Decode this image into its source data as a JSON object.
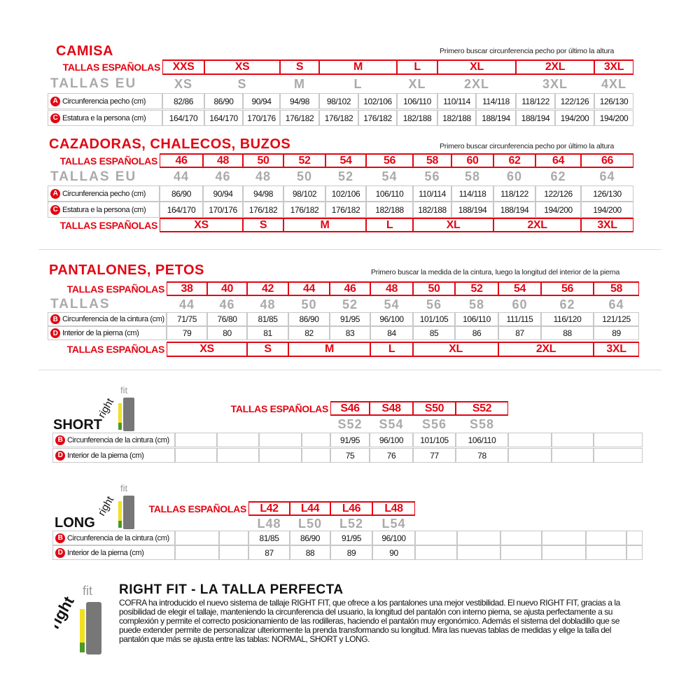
{
  "camisa": {
    "title": "CAMISA",
    "hint": "Primero buscar circunferencia pecho por último la altura",
    "es_label": "TALLAS ESPAÑOLAS",
    "eu_label": "TALLAS EU",
    "es": [
      "XXS",
      "XS",
      "S",
      "M",
      "L",
      "XL",
      "2XL",
      "3XL"
    ],
    "eu": [
      "XS",
      "S",
      "M",
      "L",
      "XL",
      "2XL",
      "3XL",
      "4XL"
    ],
    "rows": [
      {
        "badge": "A",
        "label": "Circunferencia pecho (cm)",
        "values": [
          "82/86",
          "86/90",
          "90/94",
          "94/98",
          "98/102",
          "102/106",
          "106/110",
          "110/114",
          "114/118",
          "118/122",
          "122/126",
          "126/130"
        ]
      },
      {
        "badge": "C",
        "label": "Estatura e la persona (cm)",
        "values": [
          "164/170",
          "164/170",
          "170/176",
          "176/182",
          "176/182",
          "176/182",
          "182/188",
          "182/188",
          "188/194",
          "188/194",
          "194/200",
          "194/200"
        ]
      }
    ]
  },
  "cazadoras": {
    "title": "CAZADORAS, CHALECOS, BUZOS",
    "hint": "Primero buscar circunferencia pecho por último la altura",
    "es_label": "TALLAS ESPAÑOLAS",
    "eu_label": "TALLAS EU",
    "es": [
      "46",
      "48",
      "50",
      "52",
      "54",
      "56",
      "58",
      "60",
      "62",
      "64",
      "66"
    ],
    "eu": [
      "44",
      "46",
      "48",
      "50",
      "52",
      "54",
      "56",
      "58",
      "60",
      "62",
      "64"
    ],
    "rows": [
      {
        "badge": "A",
        "label": "Circunferencia pecho (cm)",
        "values": [
          "86/90",
          "90/94",
          "94/98",
          "98/102",
          "102/106",
          "106/110",
          "110/114",
          "114/118",
          "118/122",
          "122/126",
          "126/130"
        ]
      },
      {
        "badge": "C",
        "label": "Estatura e la persona (cm)",
        "values": [
          "164/170",
          "170/176",
          "176/182",
          "176/182",
          "176/182",
          "182/188",
          "182/188",
          "188/194",
          "188/194",
          "194/200",
          "194/200"
        ]
      }
    ],
    "bottom_label": "TALLAS ESPAÑOLAS",
    "bottom": [
      "XS",
      "S",
      "M",
      "L",
      "XL",
      "2XL",
      "3XL"
    ]
  },
  "pantalones": {
    "title": "PANTALONES, PETOS",
    "hint": "Primero buscar la medida de la cintura, luego la longitud del interior de la pierna",
    "es_label": "TALLAS ESPAÑOLAS",
    "eu_label": "TALLAS",
    "es": [
      "38",
      "40",
      "42",
      "44",
      "46",
      "48",
      "50",
      "52",
      "54",
      "56",
      "58"
    ],
    "eu": [
      "44",
      "46",
      "48",
      "50",
      "52",
      "54",
      "56",
      "58",
      "60",
      "62",
      "64"
    ],
    "rows": [
      {
        "badge": "B",
        "label": "Circunferencia de la cintura (cm)",
        "values": [
          "71/75",
          "76/80",
          "81/85",
          "86/90",
          "91/95",
          "96/100",
          "101/105",
          "106/110",
          "111/115",
          "116/120",
          "121/125"
        ]
      },
      {
        "badge": "D",
        "label": "Interior de la pierna (cm)",
        "values": [
          "79",
          "80",
          "81",
          "82",
          "83",
          "84",
          "85",
          "86",
          "87",
          "88",
          "89"
        ]
      }
    ],
    "bottom_label": "TALLAS ESPAÑOLAS",
    "bottom": [
      "XS",
      "S",
      "M",
      "L",
      "XL",
      "2XL",
      "3XL"
    ]
  },
  "short": {
    "title": "SHORT",
    "logo": "rightfit",
    "es_label": "TALLAS ESPAÑOLAS",
    "es": [
      "S46",
      "S48",
      "S50",
      "S52"
    ],
    "eu": [
      "S52",
      "S54",
      "S56",
      "S58"
    ],
    "rows": [
      {
        "badge": "B",
        "label": "Circunferencia de la cintura (cm)",
        "values": [
          "",
          "",
          "",
          "",
          "91/95",
          "96/100",
          "101/105",
          "106/110",
          "",
          "",
          ""
        ]
      },
      {
        "badge": "D",
        "label": "Interior de la pierna (cm)",
        "values": [
          "",
          "",
          "",
          "",
          "75",
          "76",
          "77",
          "78",
          "",
          "",
          ""
        ]
      }
    ]
  },
  "long": {
    "title": "LONG",
    "logo": "rightfit",
    "es_label": "TALLAS ESPAÑOLAS",
    "es": [
      "L42",
      "L44",
      "L46",
      "L48"
    ],
    "eu": [
      "L48",
      "L50",
      "L52",
      "L54"
    ],
    "rows": [
      {
        "badge": "B",
        "label": "Circunferencia de la cintura (cm)",
        "values": [
          "",
          "",
          "81/85",
          "86/90",
          "91/95",
          "96/100",
          "",
          "",
          "",
          "",
          "",
          ""
        ]
      },
      {
        "badge": "D",
        "label": "Interior de la pierna (cm)",
        "values": [
          "",
          "",
          "87",
          "88",
          "89",
          "90",
          "",
          "",
          "",
          "",
          "",
          ""
        ]
      }
    ]
  },
  "rightfit": {
    "logo": "rightfit",
    "title": "RIGHT FIT - LA TALLA PERFECTA",
    "text": "COFRA ha introducido el nuevo sistema de tallaje RIGHT FIT, que ofrece a los pantalones una mejor vestibilidad. El nuevo RIGHT FIT, gracias a la posibilidad de elegir el tallaje, manteniendo la circunferencia del usuario, la longitud del pantalón con interno pierna, se ajusta perfectamente a su complexión y permite el correcto posicionamiento de las rodilleras, haciendo el pantalón muy ergonómico. Además el sistema del dobladillo que se puede extender permite de personalizar ulteriormente la prenda transformando su longitud. Mira las nuevas tablas de medidas y elige la talla del pantalón que más se ajusta entre las tablas: NORMAL, SHORT y LONG."
  },
  "colors": {
    "red": "#e30613",
    "grey": "#aaaaaa"
  }
}
